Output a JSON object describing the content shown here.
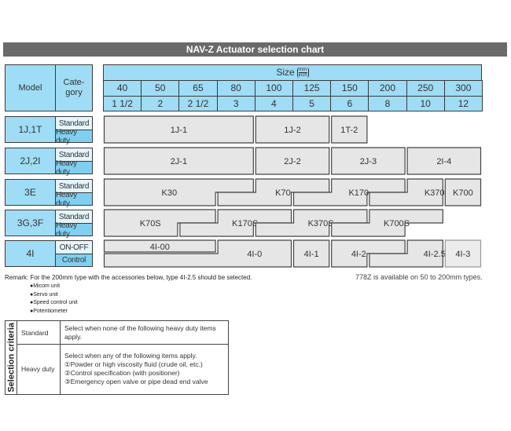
{
  "title": "NAV-Z Actuator selection chart",
  "header": {
    "model": "Model",
    "category": "Cate-\ngory",
    "size_label": "Size",
    "size_unit_top": "mm",
    "size_unit_bottom": "inch",
    "mm": [
      "40",
      "50",
      "65",
      "80",
      "100",
      "125",
      "150",
      "200",
      "250",
      "300"
    ],
    "inch": [
      "1 1/2",
      "2",
      "2 1/2",
      "3",
      "4",
      "5",
      "6",
      "8",
      "10",
      "12"
    ]
  },
  "rows": [
    {
      "model": "1J,1T",
      "cat1": "Standard",
      "cat2": "Heavy duty",
      "blocks": [
        "1J-1",
        "1J-2",
        "1T-2"
      ]
    },
    {
      "model": "2J,2I",
      "cat1": "Standard",
      "cat2": "Heavy duty",
      "blocks": [
        "2J-1",
        "2J-2",
        "2J-3",
        "2I-4"
      ]
    },
    {
      "model": "3E",
      "cat1": "Standard",
      "cat2": "Heavy duty",
      "blocks": [
        "K30",
        "K70",
        "K170",
        "K370",
        "K700"
      ]
    },
    {
      "model": "3G,3F",
      "cat1": "Standard",
      "cat2": "Heavy duty",
      "blocks": [
        "K70S",
        "K170S",
        "K370S",
        "K700S"
      ]
    },
    {
      "model": "4I",
      "cat1": "ON-OFF",
      "cat2": "Control",
      "blocks": [
        "4I-00",
        "4I-0",
        "4I-1",
        "4I-2",
        "4I-2.5",
        "4I-3"
      ]
    }
  ],
  "remark": "Remark: For the 200mm type with the accessories below, type 4I-2.5 should be selected.",
  "remark_items": [
    "●Micom unit",
    "●Servo unit",
    "●Speed control unit",
    "●Potentiometer"
  ],
  "availability_note": "778Z is available on 50 to 200mm types.",
  "criteria": {
    "heading": "Selection criteria",
    "standard_label": "Standard",
    "standard_text": "Select when none of the following heavy duty items apply.",
    "heavy_label": "Heavy duty",
    "heavy_intro": "Select when any of the following items apply.",
    "heavy_items": [
      "①Powder or high viscosity fluid (crude oil, etc.)",
      "②Control specification (with positioner)",
      "③Emergency open valve or pipe dead end valve"
    ]
  },
  "colors": {
    "header_blue": "#9fdcf5",
    "heavy_blue": "#7fd0f0",
    "block_fill": "#e6e6e6",
    "title_bar": "#6a6a6a"
  }
}
